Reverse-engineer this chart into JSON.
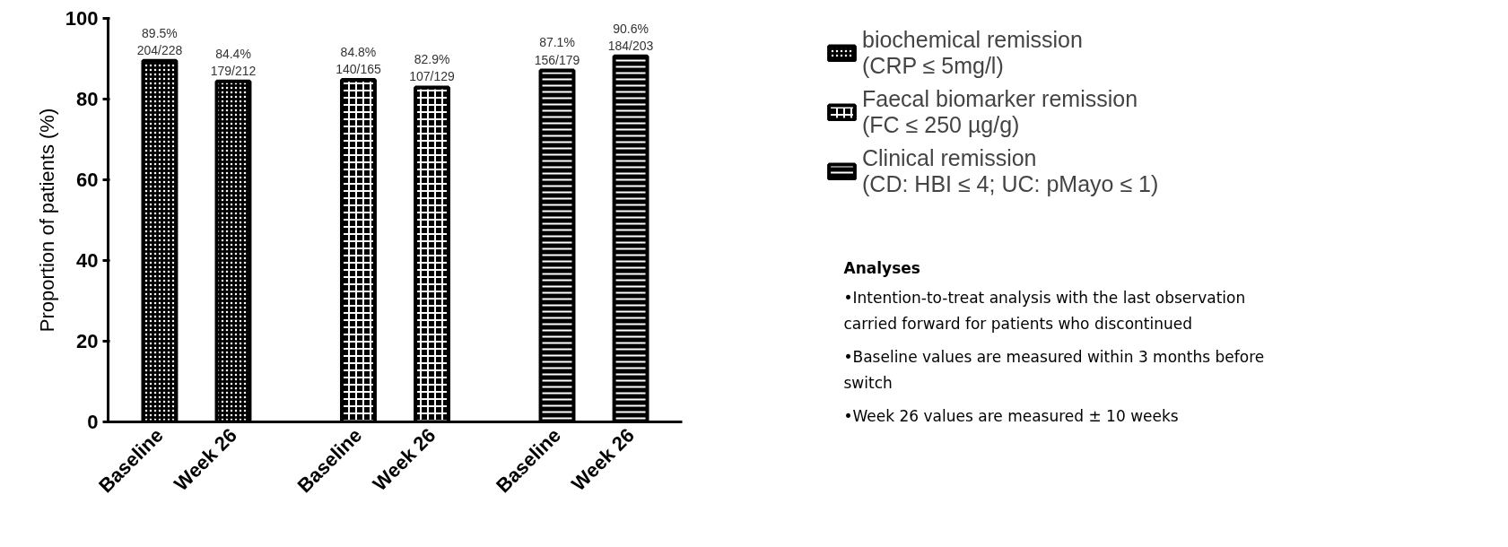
{
  "chart_data": {
    "type": "bar",
    "ylabel": "Proportion of patients (%)",
    "categories": [
      "Baseline",
      "Week 26",
      "Baseline",
      "Week 26",
      "Baseline",
      "Week 26"
    ],
    "series": [
      {
        "name": "biochemical remission\n(CRP ≤ 5mg/l)",
        "color": "#000000",
        "values": [
          89.5,
          84.4,
          null,
          null,
          null,
          null
        ],
        "value_labels": [
          "89.5%\n204/228",
          "84.4%\n179/212",
          null,
          null,
          null,
          null
        ]
      },
      {
        "name": "Faecal biomarker remission\n(FC ≤ 250 µg/g)",
        "color": "#000000",
        "values": [
          null,
          null,
          84.8,
          82.9,
          null,
          null
        ],
        "value_labels": [
          null,
          null,
          "84.8%\n140/165",
          "82.9%\n107/129",
          null,
          null
        ]
      },
      {
        "name": "Clinical remission\n(CD: HBI ≤ 4; UC: pMayo ≤ 1)",
        "color": "#000000",
        "values": [
          null,
          null,
          null,
          null,
          87.1,
          90.6
        ],
        "value_labels": [
          null,
          null,
          null,
          null,
          "87.1%\n156/179",
          "90.6%\n184/203"
        ]
      }
    ],
    "ylim": [
      0,
      100
    ],
    "yticks": [
      0,
      20,
      40,
      60,
      80,
      100
    ],
    "grid": false,
    "legend": "right",
    "annotations": [
      "Analyses",
      "•Intention-to-treat analysis with the last observation\ncarried forward for patients who discontinued",
      "•Baseline values are measured within 3 months before\nswitch",
      "•Week 26 values are measured ± 10 weeks"
    ]
  }
}
